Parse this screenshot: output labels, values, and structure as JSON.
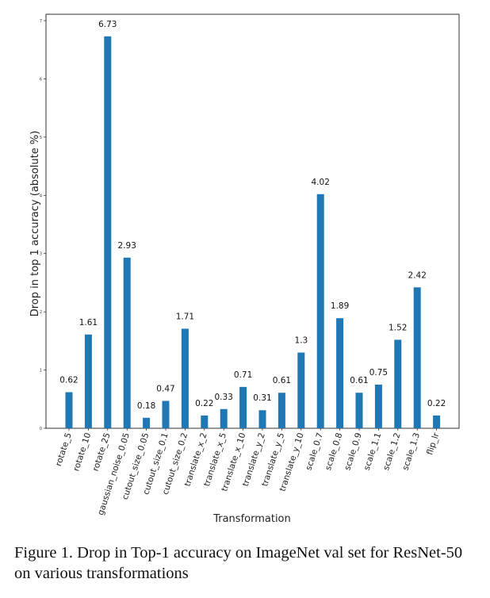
{
  "chart_data": {
    "type": "bar",
    "xlabel": "Transformation",
    "ylabel": "Drop in top 1 accuracy (absolute %)",
    "categories": [
      "rotate_5",
      "rotate_10",
      "rotate_25",
      "gaussian_noise_0.05",
      "cutout_size_0.05",
      "cutout_size_0.1",
      "cutout_size_0.2",
      "translate_x_2",
      "translate_x_5",
      "translate_x_10",
      "translate_y_2",
      "translate_y_5",
      "translate_y_10",
      "scale_0.7",
      "scale_0.8",
      "scale_0.9",
      "scale_1.1",
      "scale_1.2",
      "scale_1.3",
      "flip_lr"
    ],
    "values": [
      0.62,
      1.61,
      6.73,
      2.93,
      0.18,
      0.47,
      1.71,
      0.22,
      0.33,
      0.71,
      0.31,
      0.61,
      1.3,
      4.02,
      1.89,
      0.61,
      0.75,
      1.52,
      2.42,
      0.22
    ],
    "value_labels": [
      "0.62",
      "1.61",
      "6.73",
      "2.93",
      "0.18",
      "0.47",
      "1.71",
      "0.22",
      "0.33",
      "0.71",
      "0.31",
      "0.61",
      "1.3",
      "4.02",
      "1.89",
      "0.61",
      "0.75",
      "1.52",
      "2.42",
      "0.22"
    ],
    "yticks": [
      "0",
      "1",
      "2",
      "3",
      "4",
      "5",
      "6",
      "7"
    ],
    "ylim": [
      0,
      7
    ],
    "grid": false,
    "bar_color": "#1f77b4"
  },
  "caption": "Figure 1. Drop in Top-1 accuracy on ImageNet val set for ResNet-50 on various transformations"
}
